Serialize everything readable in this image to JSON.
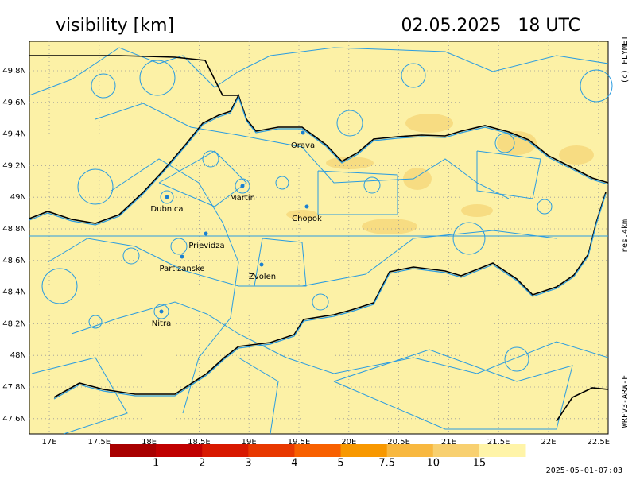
{
  "header": {
    "title": "visibility [km]",
    "datetime": "02.05.2025   18 UTC"
  },
  "side_labels": {
    "copyright": "(c) FLYMET",
    "resolution": "res.4km",
    "model": "WRFv3-ARW-F"
  },
  "footer": {
    "run": "2025-05-01-07:03"
  },
  "axes": {
    "lon_labels": [
      "17E",
      "17.5E",
      "18E",
      "18.5E",
      "19E",
      "19.5E",
      "20E",
      "20.5E",
      "21E",
      "21.5E",
      "22E",
      "22.5E"
    ],
    "lat_labels": [
      "49.8N",
      "49.6N",
      "49.4N",
      "49.2N",
      "49N",
      "48.8N",
      "48.6N",
      "48.4N",
      "48.2N",
      "48N",
      "47.8N",
      "47.6N"
    ]
  },
  "cities": [
    "Orava",
    "Dubnica",
    "Martin",
    "Chopok",
    "Prievidza",
    "Partizanske",
    "Zvolen",
    "Nitra"
  ],
  "colorbar": {
    "colors": [
      "#a80000",
      "#c00000",
      "#d81800",
      "#e83800",
      "#f86000",
      "#f89800",
      "#f8b840",
      "#f8d070",
      "#fff4a8"
    ],
    "labels": [
      "1",
      "2",
      "3",
      "4",
      "5",
      "7.5",
      "10",
      "15"
    ]
  }
}
